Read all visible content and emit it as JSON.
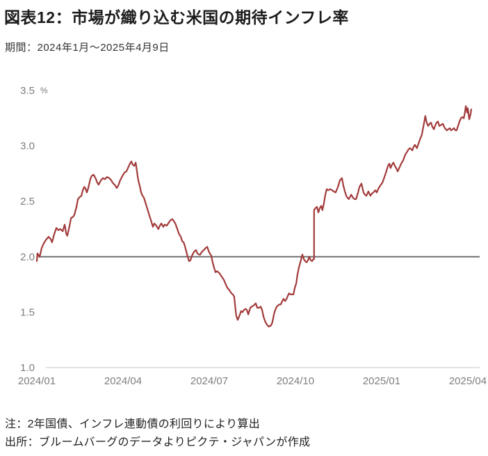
{
  "page": {
    "title": "図表12：市場が織り込む米国の期待インフレ率",
    "subtitle": "期間：2024年1月～2025年4月9日",
    "note_calculation": "注：2年国債、インフレ連動債の利回りにより算出",
    "note_source": "出所：ブルームバーグのデータよりピクテ・ジャパンが作成"
  },
  "chart_data": {
    "type": "line",
    "title": "市場が織り込む米国の期待インフレ率",
    "unit_label": "%",
    "ylim": [
      1.0,
      3.5
    ],
    "y_ticks": [
      "3.5",
      "3.0",
      "2.5",
      "2.0",
      "1.5",
      "1.0"
    ],
    "y_tick_values": [
      3.5,
      3.0,
      2.5,
      2.0,
      1.5,
      1.0
    ],
    "x_tick_labels": [
      "2024/01",
      "2024/04",
      "2024/07",
      "2024/10",
      "2025/01",
      "2025/04"
    ],
    "x_tick_months": [
      0,
      3,
      6,
      9,
      12,
      15
    ],
    "reference_line_value": 2.0,
    "grid": "off",
    "legend": "none",
    "colors": {
      "line": "#a23a3a",
      "reference_line": "#6e6e6e",
      "baseline": "#d8d8d8",
      "tick_labels": "#7d7d7d"
    },
    "series": [
      {
        "name": "期待インフレ率",
        "points": [
          [
            0,
            1.96
          ],
          [
            0.02,
            2.03
          ],
          [
            0.1,
            2.0
          ],
          [
            0.17,
            2.08
          ],
          [
            0.24,
            2.12
          ],
          [
            0.31,
            2.15
          ],
          [
            0.41,
            2.18
          ],
          [
            0.48,
            2.16
          ],
          [
            0.53,
            2.13
          ],
          [
            0.6,
            2.2
          ],
          [
            0.68,
            2.26
          ],
          [
            0.75,
            2.24
          ],
          [
            0.82,
            2.25
          ],
          [
            0.9,
            2.23
          ],
          [
            0.97,
            2.29
          ],
          [
            1.02,
            2.21
          ],
          [
            1.06,
            2.19
          ],
          [
            1.14,
            2.28
          ],
          [
            1.19,
            2.35
          ],
          [
            1.26,
            2.36
          ],
          [
            1.31,
            2.38
          ],
          [
            1.38,
            2.45
          ],
          [
            1.43,
            2.52
          ],
          [
            1.5,
            2.54
          ],
          [
            1.55,
            2.55
          ],
          [
            1.6,
            2.6
          ],
          [
            1.65,
            2.63
          ],
          [
            1.69,
            2.62
          ],
          [
            1.74,
            2.58
          ],
          [
            1.79,
            2.62
          ],
          [
            1.86,
            2.7
          ],
          [
            1.91,
            2.73
          ],
          [
            1.98,
            2.74
          ],
          [
            2.06,
            2.7
          ],
          [
            2.1,
            2.67
          ],
          [
            2.15,
            2.65
          ],
          [
            2.23,
            2.69
          ],
          [
            2.3,
            2.71
          ],
          [
            2.37,
            2.7
          ],
          [
            2.44,
            2.72
          ],
          [
            2.52,
            2.71
          ],
          [
            2.59,
            2.69
          ],
          [
            2.66,
            2.66
          ],
          [
            2.71,
            2.65
          ],
          [
            2.78,
            2.62
          ],
          [
            2.83,
            2.64
          ],
          [
            2.9,
            2.69
          ],
          [
            2.98,
            2.73
          ],
          [
            3.05,
            2.76
          ],
          [
            3.12,
            2.77
          ],
          [
            3.17,
            2.8
          ],
          [
            3.24,
            2.84
          ],
          [
            3.29,
            2.86
          ],
          [
            3.34,
            2.83
          ],
          [
            3.39,
            2.82
          ],
          [
            3.44,
            2.85
          ],
          [
            3.48,
            2.78
          ],
          [
            3.53,
            2.69
          ],
          [
            3.58,
            2.64
          ],
          [
            3.63,
            2.58
          ],
          [
            3.68,
            2.55
          ],
          [
            3.73,
            2.53
          ],
          [
            3.8,
            2.47
          ],
          [
            3.85,
            2.43
          ],
          [
            3.92,
            2.37
          ],
          [
            3.97,
            2.33
          ],
          [
            4.04,
            2.27
          ],
          [
            4.09,
            2.3
          ],
          [
            4.16,
            2.28
          ],
          [
            4.23,
            2.25
          ],
          [
            4.28,
            2.28
          ],
          [
            4.33,
            2.3
          ],
          [
            4.4,
            2.27
          ],
          [
            4.45,
            2.29
          ],
          [
            4.52,
            2.28
          ],
          [
            4.6,
            2.31
          ],
          [
            4.65,
            2.33
          ],
          [
            4.72,
            2.34
          ],
          [
            4.77,
            2.32
          ],
          [
            4.82,
            2.3
          ],
          [
            4.89,
            2.25
          ],
          [
            4.94,
            2.21
          ],
          [
            5.01,
            2.18
          ],
          [
            5.06,
            2.14
          ],
          [
            5.11,
            2.13
          ],
          [
            5.15,
            2.1
          ],
          [
            5.2,
            2.05
          ],
          [
            5.25,
            2.0
          ],
          [
            5.3,
            1.96
          ],
          [
            5.35,
            1.97
          ],
          [
            5.4,
            2.01
          ],
          [
            5.44,
            2.03
          ],
          [
            5.49,
            2.05
          ],
          [
            5.54,
            2.06
          ],
          [
            5.59,
            2.03
          ],
          [
            5.64,
            2.02
          ],
          [
            5.69,
            2.02
          ],
          [
            5.73,
            2.04
          ],
          [
            5.81,
            2.06
          ],
          [
            5.88,
            2.08
          ],
          [
            5.93,
            2.09
          ],
          [
            5.98,
            2.05
          ],
          [
            6.02,
            2.03
          ],
          [
            6.07,
            2.01
          ],
          [
            6.12,
            1.95
          ],
          [
            6.17,
            1.9
          ],
          [
            6.22,
            1.86
          ],
          [
            6.27,
            1.87
          ],
          [
            6.32,
            1.86
          ],
          [
            6.36,
            1.85
          ],
          [
            6.41,
            1.83
          ],
          [
            6.46,
            1.81
          ],
          [
            6.51,
            1.79
          ],
          [
            6.56,
            1.76
          ],
          [
            6.63,
            1.72
          ],
          [
            6.7,
            1.7
          ],
          [
            6.77,
            1.67
          ],
          [
            6.82,
            1.66
          ],
          [
            6.87,
            1.64
          ],
          [
            6.9,
            1.56
          ],
          [
            6.94,
            1.47
          ],
          [
            6.99,
            1.43
          ],
          [
            7.04,
            1.46
          ],
          [
            7.11,
            1.51
          ],
          [
            7.16,
            1.5
          ],
          [
            7.21,
            1.52
          ],
          [
            7.26,
            1.53
          ],
          [
            7.31,
            1.52
          ],
          [
            7.36,
            1.48
          ],
          [
            7.43,
            1.54
          ],
          [
            7.48,
            1.55
          ],
          [
            7.55,
            1.56
          ],
          [
            7.62,
            1.58
          ],
          [
            7.67,
            1.54
          ],
          [
            7.74,
            1.54
          ],
          [
            7.79,
            1.55
          ],
          [
            7.84,
            1.52
          ],
          [
            7.89,
            1.46
          ],
          [
            7.94,
            1.42
          ],
          [
            7.98,
            1.4
          ],
          [
            8.03,
            1.38
          ],
          [
            8.08,
            1.37
          ],
          [
            8.15,
            1.38
          ],
          [
            8.2,
            1.41
          ],
          [
            8.25,
            1.48
          ],
          [
            8.3,
            1.52
          ],
          [
            8.35,
            1.55
          ],
          [
            8.4,
            1.56
          ],
          [
            8.44,
            1.57
          ],
          [
            8.49,
            1.57
          ],
          [
            8.54,
            1.6
          ],
          [
            8.59,
            1.62
          ],
          [
            8.64,
            1.6
          ],
          [
            8.69,
            1.62
          ],
          [
            8.74,
            1.65
          ],
          [
            8.78,
            1.67
          ],
          [
            8.83,
            1.66
          ],
          [
            8.88,
            1.66
          ],
          [
            8.93,
            1.66
          ],
          [
            8.98,
            1.72
          ],
          [
            9.03,
            1.76
          ],
          [
            9.07,
            1.84
          ],
          [
            9.12,
            1.9
          ],
          [
            9.17,
            1.95
          ],
          [
            9.22,
            2.0
          ],
          [
            9.24,
            2.02
          ],
          [
            9.29,
            1.98
          ],
          [
            9.34,
            1.96
          ],
          [
            9.39,
            1.95
          ],
          [
            9.44,
            1.97
          ],
          [
            9.48,
            2.0
          ],
          [
            9.53,
            1.97
          ],
          [
            9.58,
            1.96
          ],
          [
            9.63,
            1.98
          ],
          [
            9.65,
            1.98
          ],
          [
            9.65,
            2.42
          ],
          [
            9.7,
            2.44
          ],
          [
            9.75,
            2.45
          ],
          [
            9.8,
            2.4
          ],
          [
            9.85,
            2.44
          ],
          [
            9.9,
            2.46
          ],
          [
            9.94,
            2.42
          ],
          [
            9.99,
            2.48
          ],
          [
            10.04,
            2.56
          ],
          [
            10.09,
            2.61
          ],
          [
            10.14,
            2.6
          ],
          [
            10.21,
            2.61
          ],
          [
            10.28,
            2.6
          ],
          [
            10.33,
            2.59
          ],
          [
            10.4,
            2.58
          ],
          [
            10.48,
            2.63
          ],
          [
            10.55,
            2.69
          ],
          [
            10.62,
            2.71
          ],
          [
            10.67,
            2.64
          ],
          [
            10.72,
            2.59
          ],
          [
            10.77,
            2.55
          ],
          [
            10.82,
            2.53
          ],
          [
            10.86,
            2.52
          ],
          [
            10.94,
            2.56
          ],
          [
            11.01,
            2.53
          ],
          [
            11.06,
            2.52
          ],
          [
            11.11,
            2.52
          ],
          [
            11.18,
            2.58
          ],
          [
            11.23,
            2.63
          ],
          [
            11.3,
            2.66
          ],
          [
            11.37,
            2.58
          ],
          [
            11.42,
            2.56
          ],
          [
            11.47,
            2.55
          ],
          [
            11.54,
            2.59
          ],
          [
            11.61,
            2.55
          ],
          [
            11.66,
            2.57
          ],
          [
            11.71,
            2.58
          ],
          [
            11.78,
            2.6
          ],
          [
            11.83,
            2.58
          ],
          [
            11.9,
            2.62
          ],
          [
            11.95,
            2.64
          ],
          [
            12.03,
            2.67
          ],
          [
            12.07,
            2.7
          ],
          [
            12.15,
            2.76
          ],
          [
            12.22,
            2.82
          ],
          [
            12.27,
            2.84
          ],
          [
            12.31,
            2.8
          ],
          [
            12.36,
            2.83
          ],
          [
            12.41,
            2.85
          ],
          [
            12.46,
            2.82
          ],
          [
            12.51,
            2.8
          ],
          [
            12.56,
            2.77
          ],
          [
            12.63,
            2.81
          ],
          [
            12.68,
            2.84
          ],
          [
            12.75,
            2.87
          ],
          [
            12.82,
            2.92
          ],
          [
            12.87,
            2.94
          ],
          [
            12.94,
            2.97
          ],
          [
            12.99,
            2.98
          ],
          [
            13.07,
            2.96
          ],
          [
            13.11,
            2.99
          ],
          [
            13.16,
            3.01
          ],
          [
            13.23,
            2.98
          ],
          [
            13.31,
            3.04
          ],
          [
            13.35,
            3.07
          ],
          [
            13.4,
            3.1
          ],
          [
            13.45,
            3.17
          ],
          [
            13.5,
            3.24
          ],
          [
            13.52,
            3.27
          ],
          [
            13.57,
            3.21
          ],
          [
            13.62,
            3.18
          ],
          [
            13.67,
            3.2
          ],
          [
            13.72,
            3.21
          ],
          [
            13.77,
            3.17
          ],
          [
            13.82,
            3.15
          ],
          [
            13.86,
            3.18
          ],
          [
            13.91,
            3.21
          ],
          [
            13.96,
            3.22
          ],
          [
            14.01,
            3.18
          ],
          [
            14.08,
            3.19
          ],
          [
            14.13,
            3.2
          ],
          [
            14.2,
            3.16
          ],
          [
            14.27,
            3.14
          ],
          [
            14.32,
            3.15
          ],
          [
            14.37,
            3.16
          ],
          [
            14.42,
            3.14
          ],
          [
            14.47,
            3.15
          ],
          [
            14.52,
            3.16
          ],
          [
            14.57,
            3.14
          ],
          [
            14.61,
            3.14
          ],
          [
            14.66,
            3.18
          ],
          [
            14.71,
            3.22
          ],
          [
            14.76,
            3.25
          ],
          [
            14.81,
            3.26
          ],
          [
            14.86,
            3.25
          ],
          [
            14.9,
            3.3
          ],
          [
            14.93,
            3.36
          ],
          [
            14.98,
            3.3
          ],
          [
            15.0,
            3.34
          ],
          [
            15.05,
            3.24
          ],
          [
            15.1,
            3.29
          ],
          [
            15.12,
            3.33
          ]
        ]
      }
    ]
  }
}
